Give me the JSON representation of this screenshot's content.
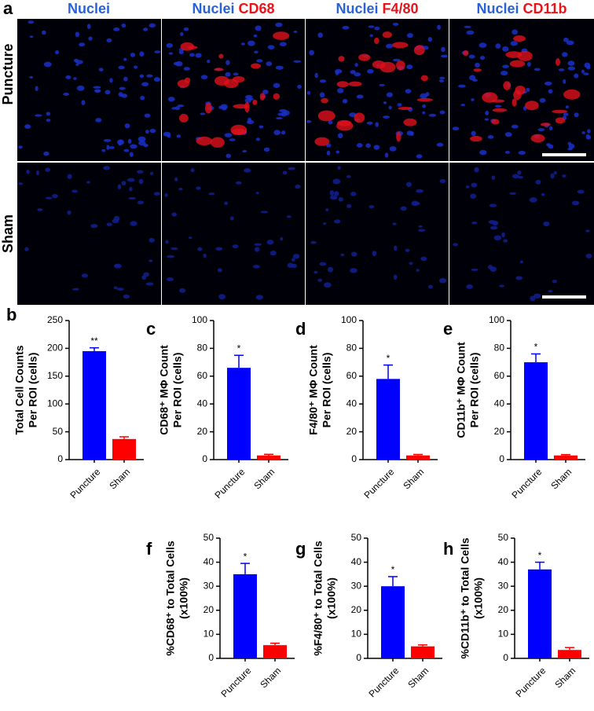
{
  "figure": {
    "panel": "a",
    "headers": [
      [
        {
          "text": "Nuclei",
          "color": "#2a62d8"
        }
      ],
      [
        {
          "text": "Nuclei",
          "color": "#2a62d8"
        },
        {
          "text": "CD68",
          "color": "#e8141c"
        }
      ],
      [
        {
          "text": "Nuclei",
          "color": "#2a62d8"
        },
        {
          "text": "F4/80",
          "color": "#e8141c"
        }
      ],
      [
        {
          "text": "Nuclei",
          "color": "#2a62d8"
        },
        {
          "text": "CD11b",
          "color": "#e8141c"
        }
      ]
    ],
    "rows": [
      "Puncture",
      "Sham"
    ]
  },
  "chart_data": [
    {
      "type": "bar",
      "panel": "b",
      "ylabel": [
        "Total Cell Counts",
        "Per ROI (cells)"
      ],
      "categories": [
        "Puncture",
        "Sham"
      ],
      "values": [
        195,
        37
      ],
      "errors": [
        6,
        4
      ],
      "annotations": [
        "**",
        null
      ],
      "colors": [
        "#0000ff",
        "#ff0000"
      ],
      "ylim": [
        0,
        250
      ],
      "yticks": [
        0,
        50,
        100,
        150,
        200,
        250
      ]
    },
    {
      "type": "bar",
      "panel": "c",
      "ylabel": [
        "CD68⁺ MΦ Count",
        "Per ROI (cells)"
      ],
      "categories": [
        "Puncture",
        "Sham"
      ],
      "values": [
        66,
        3
      ],
      "errors": [
        9,
        0.8
      ],
      "annotations": [
        "*",
        null
      ],
      "colors": [
        "#0000ff",
        "#ff0000"
      ],
      "ylim": [
        0,
        100
      ],
      "yticks": [
        0,
        20,
        40,
        60,
        80,
        100
      ]
    },
    {
      "type": "bar",
      "panel": "d",
      "ylabel": [
        "F4/80⁺ MΦ Count",
        "Per ROI (cells)"
      ],
      "categories": [
        "Puncture",
        "Sham"
      ],
      "values": [
        58,
        3
      ],
      "errors": [
        10,
        0.7
      ],
      "annotations": [
        "*",
        null
      ],
      "colors": [
        "#0000ff",
        "#ff0000"
      ],
      "ylim": [
        0,
        100
      ],
      "yticks": [
        0,
        20,
        40,
        60,
        80,
        100
      ]
    },
    {
      "type": "bar",
      "panel": "e",
      "ylabel": [
        "CD11b⁺ MΦ Count",
        "Per ROI (cells)"
      ],
      "categories": [
        "Puncture",
        "Sham"
      ],
      "values": [
        70,
        3
      ],
      "errors": [
        6,
        0.6
      ],
      "annotations": [
        "*",
        null
      ],
      "colors": [
        "#0000ff",
        "#ff0000"
      ],
      "ylim": [
        0,
        100
      ],
      "yticks": [
        0,
        20,
        40,
        60,
        80,
        100
      ]
    },
    {
      "type": "bar",
      "panel": "f",
      "ylabel": [
        "%CD68⁺ to Total Cells",
        "(x100%)"
      ],
      "categories": [
        "Puncture",
        "Sham"
      ],
      "values": [
        35,
        5.5
      ],
      "errors": [
        4.5,
        0.8
      ],
      "annotations": [
        "*",
        null
      ],
      "colors": [
        "#0000ff",
        "#ff0000"
      ],
      "ylim": [
        0,
        50
      ],
      "yticks": [
        0,
        10,
        20,
        30,
        40,
        50
      ]
    },
    {
      "type": "bar",
      "panel": "g",
      "ylabel": [
        "%F4/80⁺ to Total Cells",
        "(x100%)"
      ],
      "categories": [
        "Puncture",
        "Sham"
      ],
      "values": [
        30,
        5
      ],
      "errors": [
        4,
        0.6
      ],
      "annotations": [
        "*",
        null
      ],
      "colors": [
        "#0000ff",
        "#ff0000"
      ],
      "ylim": [
        0,
        50
      ],
      "yticks": [
        0,
        10,
        20,
        30,
        40,
        50
      ]
    },
    {
      "type": "bar",
      "panel": "h",
      "ylabel": [
        "%CD11b⁺ to Total Cells",
        "(x100%)"
      ],
      "categories": [
        "Puncture",
        "Sham"
      ],
      "values": [
        37,
        3.5
      ],
      "errors": [
        3,
        1
      ],
      "annotations": [
        "*",
        null
      ],
      "colors": [
        "#0000ff",
        "#ff0000"
      ],
      "ylim": [
        0,
        50
      ],
      "yticks": [
        0,
        10,
        20,
        30,
        40,
        50
      ]
    }
  ]
}
